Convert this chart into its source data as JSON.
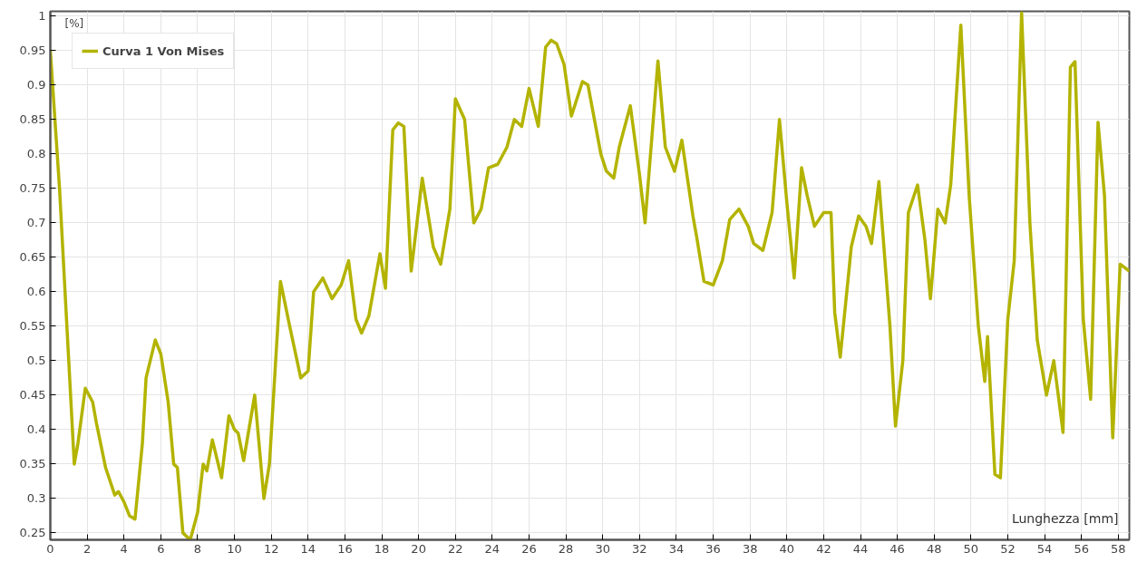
{
  "chart_data": {
    "type": "line",
    "xlabel": "Lunghezza [mm]",
    "ylabel": "[%]",
    "xlim": [
      0,
      58.6
    ],
    "ylim": [
      0.24,
      1.007
    ],
    "xticks": [
      0,
      2,
      4,
      6,
      8,
      10,
      12,
      14,
      16,
      18,
      20,
      22,
      24,
      26,
      28,
      30,
      32,
      34,
      36,
      38,
      40,
      42,
      44,
      46,
      48,
      50,
      52,
      54,
      56,
      58
    ],
    "yticks": [
      0.25,
      0.3,
      0.35,
      0.4,
      0.45,
      0.5,
      0.55,
      0.6,
      0.65,
      0.7,
      0.75,
      0.8,
      0.85,
      0.9,
      0.95,
      1
    ],
    "grid": true,
    "legend": "top left",
    "marker": "none",
    "line_style": "solid",
    "series": [
      {
        "name": "Curva 1 Von Mises",
        "color": "#b3b300",
        "x": [
          0,
          0.5,
          1.0,
          1.3,
          1.5,
          1.9,
          2.3,
          2.5,
          3.0,
          3.5,
          3.7,
          4.0,
          4.3,
          4.6,
          5.0,
          5.2,
          5.7,
          6.0,
          6.4,
          6.7,
          6.9,
          7.2,
          7.6,
          8.0,
          8.3,
          8.5,
          8.8,
          9.3,
          9.7,
          10.0,
          10.2,
          10.5,
          11.1,
          11.6,
          11.9,
          12.5,
          13.0,
          13.6,
          14.0,
          14.3,
          14.8,
          15.3,
          15.8,
          16.2,
          16.6,
          16.9,
          17.3,
          17.9,
          18.2,
          18.6,
          18.9,
          19.2,
          19.6,
          20.2,
          20.8,
          21.2,
          21.7,
          22.0,
          22.5,
          23.0,
          23.4,
          23.8,
          24.3,
          24.8,
          25.2,
          25.6,
          26.0,
          26.5,
          26.9,
          27.2,
          27.5,
          27.9,
          28.3,
          28.9,
          29.2,
          29.9,
          30.2,
          30.6,
          30.9,
          31.5,
          32.0,
          32.3,
          33.0,
          33.4,
          33.9,
          34.3,
          34.9,
          35.1,
          35.5,
          36.0,
          36.5,
          36.9,
          37.4,
          37.9,
          38.2,
          38.7,
          39.2,
          39.6,
          40.0,
          40.4,
          40.8,
          41.1,
          41.5,
          42.0,
          42.4,
          42.6,
          42.9,
          43.5,
          43.9,
          44.3,
          44.6,
          45.0,
          45.6,
          45.9,
          46.3,
          46.6,
          47.1,
          47.5,
          47.8,
          48.2,
          48.6,
          48.9,
          49.45,
          49.9,
          50.4,
          50.75,
          50.9,
          51.3,
          51.6,
          52.0,
          52.35,
          52.75,
          53.2,
          53.6,
          54.1,
          54.5,
          55.0,
          55.4,
          55.65,
          56.1,
          56.5,
          56.9,
          57.25,
          57.7,
          58.1,
          58.6
        ],
        "values": [
          0.95,
          0.75,
          0.5,
          0.35,
          0.38,
          0.46,
          0.44,
          0.41,
          0.345,
          0.305,
          0.31,
          0.295,
          0.275,
          0.27,
          0.38,
          0.475,
          0.53,
          0.51,
          0.44,
          0.35,
          0.345,
          0.25,
          0.24,
          0.28,
          0.35,
          0.34,
          0.385,
          0.33,
          0.42,
          0.4,
          0.395,
          0.355,
          0.45,
          0.3,
          0.35,
          0.615,
          0.55,
          0.475,
          0.485,
          0.6,
          0.62,
          0.59,
          0.61,
          0.645,
          0.56,
          0.54,
          0.565,
          0.655,
          0.605,
          0.835,
          0.845,
          0.84,
          0.63,
          0.765,
          0.665,
          0.64,
          0.72,
          0.88,
          0.85,
          0.7,
          0.72,
          0.78,
          0.785,
          0.81,
          0.85,
          0.84,
          0.895,
          0.84,
          0.955,
          0.965,
          0.96,
          0.93,
          0.855,
          0.905,
          0.9,
          0.8,
          0.775,
          0.765,
          0.81,
          0.87,
          0.77,
          0.7,
          0.935,
          0.81,
          0.775,
          0.82,
          0.71,
          0.68,
          0.615,
          0.61,
          0.645,
          0.705,
          0.72,
          0.695,
          0.67,
          0.66,
          0.715,
          0.85,
          0.73,
          0.62,
          0.78,
          0.74,
          0.695,
          0.715,
          0.715,
          0.57,
          0.505,
          0.665,
          0.71,
          0.695,
          0.67,
          0.76,
          0.55,
          0.405,
          0.5,
          0.715,
          0.755,
          0.675,
          0.59,
          0.72,
          0.7,
          0.755,
          0.987,
          0.74,
          0.55,
          0.47,
          0.535,
          0.335,
          0.33,
          0.56,
          0.645,
          1.005,
          0.7,
          0.53,
          0.45,
          0.5,
          0.396,
          0.926,
          0.934,
          0.56,
          0.444,
          0.846,
          0.74,
          0.388,
          0.64,
          0.63
        ]
      }
    ]
  }
}
